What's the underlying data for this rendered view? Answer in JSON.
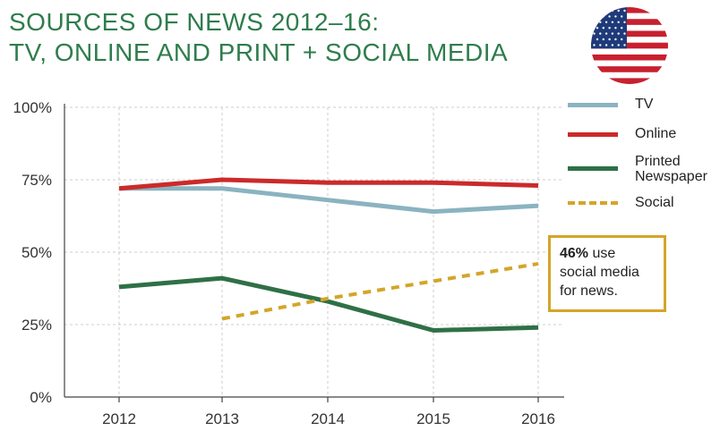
{
  "title": {
    "line1": "SOURCES OF NEWS 2012–16:",
    "line2": "TV, ONLINE AND PRINT + SOCIAL MEDIA"
  },
  "flag_icon": "us-flag-icon",
  "callout": {
    "highlight": "46%",
    "text_a": " use",
    "text_b": "social media",
    "text_c": "for news."
  },
  "colors": {
    "tv": "#8ab3c0",
    "online": "#cc2a2a",
    "printed": "#2f7047",
    "social": "#d4a529",
    "title": "#2e7d4c",
    "grid": "#cccccc"
  },
  "chart_data": {
    "type": "line",
    "x": [
      "2012",
      "2013",
      "2014",
      "2015",
      "2016"
    ],
    "yticks": [
      "0%",
      "25%",
      "50%",
      "75%",
      "100%"
    ],
    "ylim": [
      0,
      100
    ],
    "grid": true,
    "legend_position": "right",
    "series": [
      {
        "name": "TV",
        "values": [
          72,
          72,
          68,
          64,
          66
        ],
        "style": "solid"
      },
      {
        "name": "Online",
        "values": [
          72,
          75,
          74,
          74,
          73
        ],
        "style": "solid"
      },
      {
        "name": "Printed Newspaper",
        "values": [
          38,
          41,
          33,
          23,
          24
        ],
        "style": "solid"
      },
      {
        "name": "Social",
        "values": [
          null,
          27,
          34,
          40,
          46
        ],
        "style": "dashed"
      }
    ]
  },
  "legend": [
    {
      "label_lines": [
        "TV"
      ]
    },
    {
      "label_lines": [
        "Online"
      ]
    },
    {
      "label_lines": [
        "Printed",
        "Newspaper"
      ]
    },
    {
      "label_lines": [
        "Social"
      ]
    }
  ]
}
